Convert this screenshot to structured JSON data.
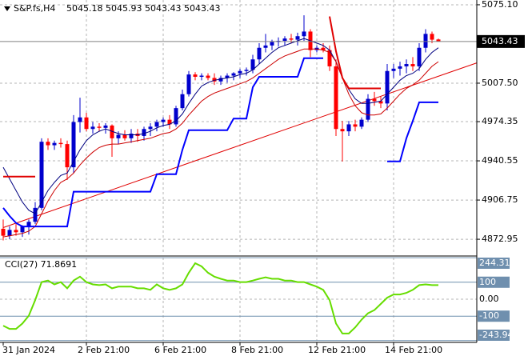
{
  "chart_data": [
    {
      "type": "candlestick",
      "symbol": "S&P.fs,H4",
      "categories": [
        "31 Jan 2024",
        null,
        null,
        null,
        null,
        null,
        null,
        null,
        null,
        null,
        null,
        null,
        null,
        "2 Feb 21:00",
        null,
        null,
        null,
        null,
        null,
        null,
        null,
        null,
        null,
        null,
        null,
        "6 Feb 21:00",
        null,
        null,
        null,
        null,
        null,
        null,
        null,
        null,
        null,
        null,
        null,
        "8 Feb 21:00",
        null,
        null,
        null,
        null,
        null,
        null,
        null,
        null,
        null,
        null,
        null,
        "12 Feb 21:00",
        null,
        null,
        null,
        null,
        null,
        null,
        null,
        null,
        null,
        null,
        null,
        "14 Feb 21:00",
        null,
        null,
        null,
        null,
        null,
        null,
        null
      ],
      "open": [
        4882,
        4876,
        4881,
        4879,
        4884,
        4888,
        4900,
        4957,
        4954,
        4956,
        4955,
        4935,
        4974,
        4978,
        4968,
        4970,
        4969,
        4971,
        4960,
        4963,
        4960,
        4964,
        4962,
        4968,
        4970,
        4974,
        4976,
        4972,
        4986,
        4998,
        5015,
        5013,
        5014,
        5012,
        5009,
        5012,
        5014,
        5016,
        5018,
        5019,
        5028,
        5038,
        5040,
        5043,
        5044,
        5046,
        5045,
        5048,
        5052,
        5036,
        5038,
        5036,
        5022,
        4968,
        4966,
        4972,
        4970,
        4976,
        4994,
        4992,
        4990,
        5018,
        5020,
        5022,
        5024,
        5022,
        5038,
        5050,
        5045.18
      ],
      "high": [
        4890,
        4884,
        4886,
        4885,
        4890,
        4905,
        4960,
        4960,
        4958,
        4960,
        4958,
        4980,
        4995,
        4982,
        4974,
        4973,
        4973,
        4972,
        4966,
        4967,
        4968,
        4968,
        4970,
        4973,
        4976,
        4978,
        4980,
        4988,
        5002,
        5018,
        5017,
        5016,
        5016,
        5016,
        5014,
        5016,
        5017,
        5020,
        5021,
        5032,
        5042,
        5050,
        5045,
        5047,
        5048,
        5050,
        5051,
        5066,
        5054,
        5040,
        5042,
        5040,
        5028,
        4975,
        4975,
        4976,
        4978,
        4998,
        5000,
        4996,
        5024,
        5024,
        5026,
        5028,
        5030,
        5042,
        5054,
        5052,
        5045.93
      ],
      "low": [
        4872,
        4873,
        4876,
        4875,
        4877,
        4886,
        4898,
        4950,
        4950,
        4952,
        4924,
        4930,
        4965,
        4966,
        4964,
        4966,
        4964,
        4944,
        4955,
        4958,
        4956,
        4957,
        4958,
        4962,
        4966,
        4970,
        4968,
        4970,
        4984,
        4996,
        5010,
        5010,
        5010,
        5006,
        5006,
        5008,
        5010,
        5012,
        5014,
        5016,
        5024,
        5034,
        5036,
        5039,
        5040,
        5042,
        5040,
        5044,
        5030,
        5034,
        5034,
        5018,
        4962,
        4940,
        4962,
        4966,
        4968,
        4974,
        4988,
        4986,
        4984,
        5012,
        5014,
        5016,
        5018,
        5018,
        5034,
        5042,
        5043.43
      ],
      "close": [
        4876,
        4881,
        4879,
        4884,
        4888,
        4900,
        4957,
        4954,
        4956,
        4955,
        4935,
        4974,
        4978,
        4968,
        4970,
        4969,
        4971,
        4960,
        4963,
        4960,
        4964,
        4962,
        4968,
        4970,
        4974,
        4976,
        4972,
        4986,
        4998,
        5015,
        5013,
        5014,
        5012,
        5009,
        5012,
        5014,
        5016,
        5018,
        5019,
        5028,
        5038,
        5040,
        5043,
        5044,
        5046,
        5045,
        5048,
        5052,
        5036,
        5038,
        5036,
        5022,
        4968,
        4966,
        4972,
        4970,
        4976,
        4994,
        4992,
        4990,
        5018,
        5020,
        5022,
        5024,
        5022,
        5038,
        5050,
        5045,
        5043.43
      ],
      "up_color": "#0000cd",
      "down_color": "#ff0000",
      "overlays": [
        {
          "color": "#000080",
          "width": 1,
          "values": [
            4935,
            4925,
            4915,
            4905,
            4898,
            4895,
            4905,
            4915,
            4922,
            4928,
            4930,
            4940,
            4950,
            4958,
            4963,
            4966,
            4968,
            4966,
            4964,
            4963,
            4963,
            4963,
            4964,
            4966,
            4969,
            4971,
            4972,
            4975,
            4981,
            4990,
            4998,
            5005,
            5008,
            5010,
            5011,
            5012,
            5013,
            5015,
            5016,
            5019,
            5024,
            5029,
            5034,
            5038,
            5040,
            5042,
            5044,
            5046,
            5044,
            5042,
            5040,
            5036,
            5026,
            5012,
            5002,
            4994,
            4990,
            4990,
            4991,
            4992,
            4998,
            5004,
            5010,
            5014,
            5016,
            5020,
            5028,
            5034,
            5038
          ]
        },
        {
          "color": "#cc0000",
          "width": 1,
          "values": [
            4875,
            4876,
            4877,
            4878,
            4880,
            4884,
            4895,
            4906,
            4915,
            4922,
            4925,
            4930,
            4937,
            4943,
            4948,
            4952,
            4954,
            4955,
            4955,
            4956,
            4957,
            4958,
            4959,
            4960,
            4962,
            4964,
            4965,
            4968,
            4973,
            4980,
            4986,
            4992,
            4996,
            4999,
            5001,
            5003,
            5005,
            5007,
            5009,
            5012,
            5016,
            5020,
            5024,
            5028,
            5031,
            5033,
            5035,
            5037,
            5037,
            5037,
            5036,
            5034,
            5026,
            5012,
            4998,
            4988,
            4982,
            4980,
            4980,
            4981,
            4986,
            4992,
            4998,
            5003,
            5006,
            5010,
            5016,
            5022,
            5026
          ]
        },
        {
          "color": "#0000ff",
          "width": 2,
          "values": [
            4900,
            4893,
            4887,
            4884,
            4884,
            4884,
            4884,
            4884,
            4884,
            4884,
            4884,
            4914,
            4914,
            4914,
            4914,
            4914,
            4914,
            4914,
            4914,
            4914,
            4914,
            4914,
            4914,
            4914,
            4929,
            4929,
            4929,
            4929,
            4950,
            4967,
            4967,
            4967,
            4967,
            4967,
            4967,
            4967,
            4977,
            4977,
            4977,
            5004,
            5013,
            5013,
            5013,
            5013,
            5013,
            5013,
            5013,
            5029,
            5029,
            5029,
            5029,
            null,
            null,
            null,
            null,
            null,
            null,
            null,
            null,
            null,
            4940,
            4940,
            4940,
            4960,
            4975,
            4991,
            4991,
            4991,
            4991
          ]
        },
        {
          "color": "#e00000",
          "width": 2,
          "values": [
            4927,
            4927,
            4927,
            4927,
            4927,
            4927,
            null,
            null,
            null,
            null,
            null,
            null,
            null,
            null,
            null,
            null,
            null,
            null,
            null,
            null,
            null,
            null,
            null,
            null,
            null,
            null,
            null,
            null,
            null,
            null,
            null,
            null,
            null,
            null,
            null,
            null,
            null,
            null,
            null,
            null,
            null,
            null,
            null,
            null,
            null,
            null,
            null,
            null,
            null,
            null,
            null,
            5065,
            5035,
            5012,
            5003,
            5003,
            5003,
            5003,
            5003,
            5003,
            null,
            null,
            null,
            null,
            null,
            null,
            null,
            null,
            null
          ]
        }
      ],
      "trendline": {
        "color": "#e00000",
        "x": [
          0,
          74
        ],
        "values": [
          4883,
          5025
        ]
      },
      "ylim": [
        4859.9,
        5079.2
      ],
      "yticks": [
        {
          "value": 5075.1,
          "label": "5075.10"
        },
        {
          "value": 5007.5,
          "label": "5007.50"
        },
        4974.35,
        4940.55,
        4906.75,
        4872.95
      ],
      "grid": true
    },
    {
      "type": "line",
      "title": "CCI(27) 71.8691",
      "color": "#66dd00",
      "values": [
        -156,
        -175,
        -175,
        -143,
        -97,
        -5,
        101,
        110,
        87,
        101,
        64,
        110,
        133,
        101,
        87,
        83,
        87,
        64,
        74,
        74,
        74,
        64,
        64,
        55,
        87,
        64,
        55,
        64,
        87,
        156,
        212,
        193,
        156,
        133,
        120,
        110,
        110,
        101,
        101,
        110,
        120,
        129,
        120,
        120,
        110,
        110,
        101,
        101,
        87,
        74,
        55,
        -5,
        -143,
        -202,
        -202,
        -166,
        -120,
        -83,
        -64,
        -28,
        9,
        28,
        28,
        37,
        55,
        83,
        87,
        83,
        83
      ],
      "ylim": [
        -245,
        245
      ],
      "yticks": [
        244.3151,
        100,
        {
          "value": 0,
          "label": "0.00"
        },
        -100,
        -243.9482
      ]
    }
  ]
}
